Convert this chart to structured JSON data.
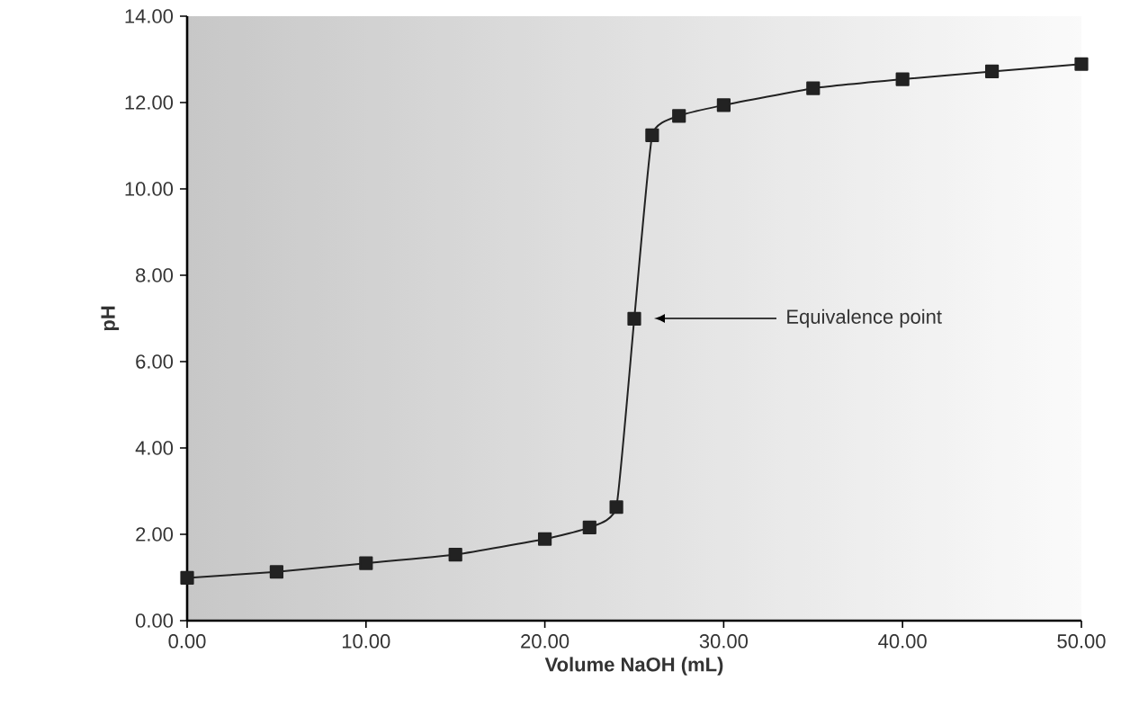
{
  "chart_data": {
    "type": "line",
    "xlabel": "Volume NaOH (mL)",
    "ylabel": "pH",
    "x": [
      0,
      5,
      10,
      15,
      20,
      22.5,
      24,
      25,
      26,
      27.5,
      30,
      35,
      40,
      45,
      50
    ],
    "series": [
      {
        "color": "#222222",
        "values": [
          0.99,
          1.13,
          1.33,
          1.53,
          1.89,
          2.16,
          2.63,
          6.99,
          11.24,
          11.69,
          11.94,
          12.33,
          12.54,
          12.72,
          12.89
        ]
      }
    ],
    "marker": "square",
    "line_style": "solid",
    "xlim": [
      0,
      50
    ],
    "ylim": [
      0,
      14
    ],
    "xticks": [
      {
        "value": 0,
        "label": "0.00"
      },
      {
        "value": 10,
        "label": "10.00"
      },
      {
        "value": 20,
        "label": "20.00"
      },
      {
        "value": 30,
        "label": "30.00"
      },
      {
        "value": 40,
        "label": "40.00"
      },
      {
        "value": 50,
        "label": "50.00"
      }
    ],
    "yticks": [
      {
        "value": 0,
        "label": "0.00"
      },
      {
        "value": 2,
        "label": "2.00"
      },
      {
        "value": 4,
        "label": "4.00"
      },
      {
        "value": 6,
        "label": "6.00"
      },
      {
        "value": 8,
        "label": "8.00"
      },
      {
        "value": 10,
        "label": "10.00"
      },
      {
        "value": 12,
        "label": "12.00"
      },
      {
        "value": 14,
        "label": "14.00"
      }
    ],
    "annotations": [
      "Equivalence point"
    ],
    "grid": false
  }
}
